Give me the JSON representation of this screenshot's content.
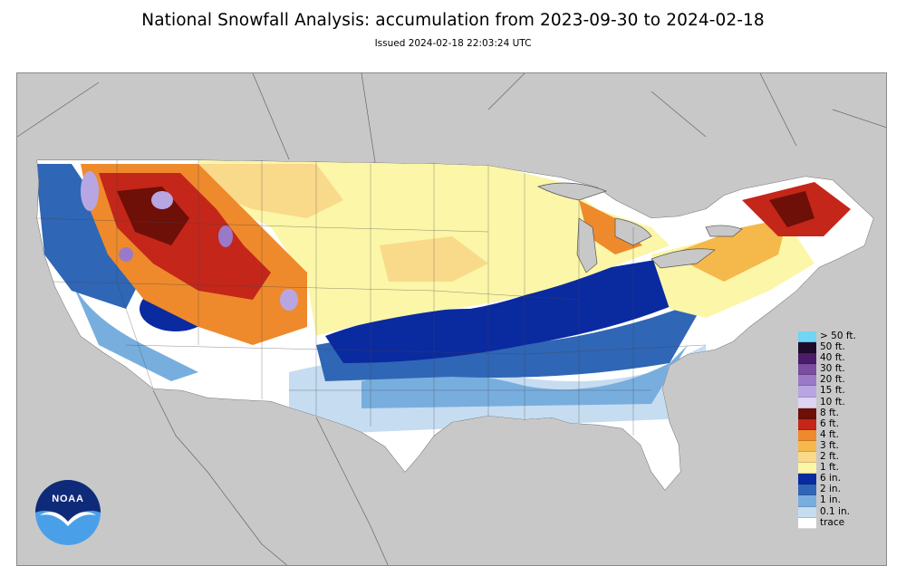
{
  "header": {
    "title": "National Snowfall Analysis: accumulation from 2023-09-30 to 2024-02-18",
    "issued": "Issued 2024-02-18 22:03:24 UTC"
  },
  "map": {
    "background_color": "#c8c8c8",
    "land_color": "#ffffff",
    "water_color": "#c8c8c8",
    "border_color": "#666666"
  },
  "legend": {
    "items": [
      {
        "label": "> 50 ft.",
        "color": "#6fd6f6"
      },
      {
        "label": "50 ft.",
        "color": "#1e0b2c"
      },
      {
        "label": "40 ft.",
        "color": "#4a1d6a"
      },
      {
        "label": "30 ft.",
        "color": "#7a4da0"
      },
      {
        "label": "20 ft.",
        "color": "#9a7ac8"
      },
      {
        "label": "15 ft.",
        "color": "#b8a6e2"
      },
      {
        "label": "10 ft.",
        "color": "#ded4f2"
      },
      {
        "label": "8 ft.",
        "color": "#6e0f08"
      },
      {
        "label": "6 ft.",
        "color": "#c4261a"
      },
      {
        "label": "4 ft.",
        "color": "#ee8a2c"
      },
      {
        "label": "3 ft.",
        "color": "#f5b84a"
      },
      {
        "label": "2 ft.",
        "color": "#f9d98a"
      },
      {
        "label": "1 ft.",
        "color": "#fbf6a8"
      },
      {
        "label": "6 in.",
        "color": "#0a2aa0"
      },
      {
        "label": "2 in.",
        "color": "#2f66b6"
      },
      {
        "label": "1 in.",
        "color": "#78aede"
      },
      {
        "label": "0.1 in.",
        "color": "#c6dcf0"
      },
      {
        "label": "trace",
        "color": "#ffffff"
      }
    ]
  },
  "logo": {
    "text": "NOAA",
    "colors": {
      "top": "#0f2a78",
      "bottom": "#4aa0e8",
      "gull": "#ffffff"
    }
  }
}
